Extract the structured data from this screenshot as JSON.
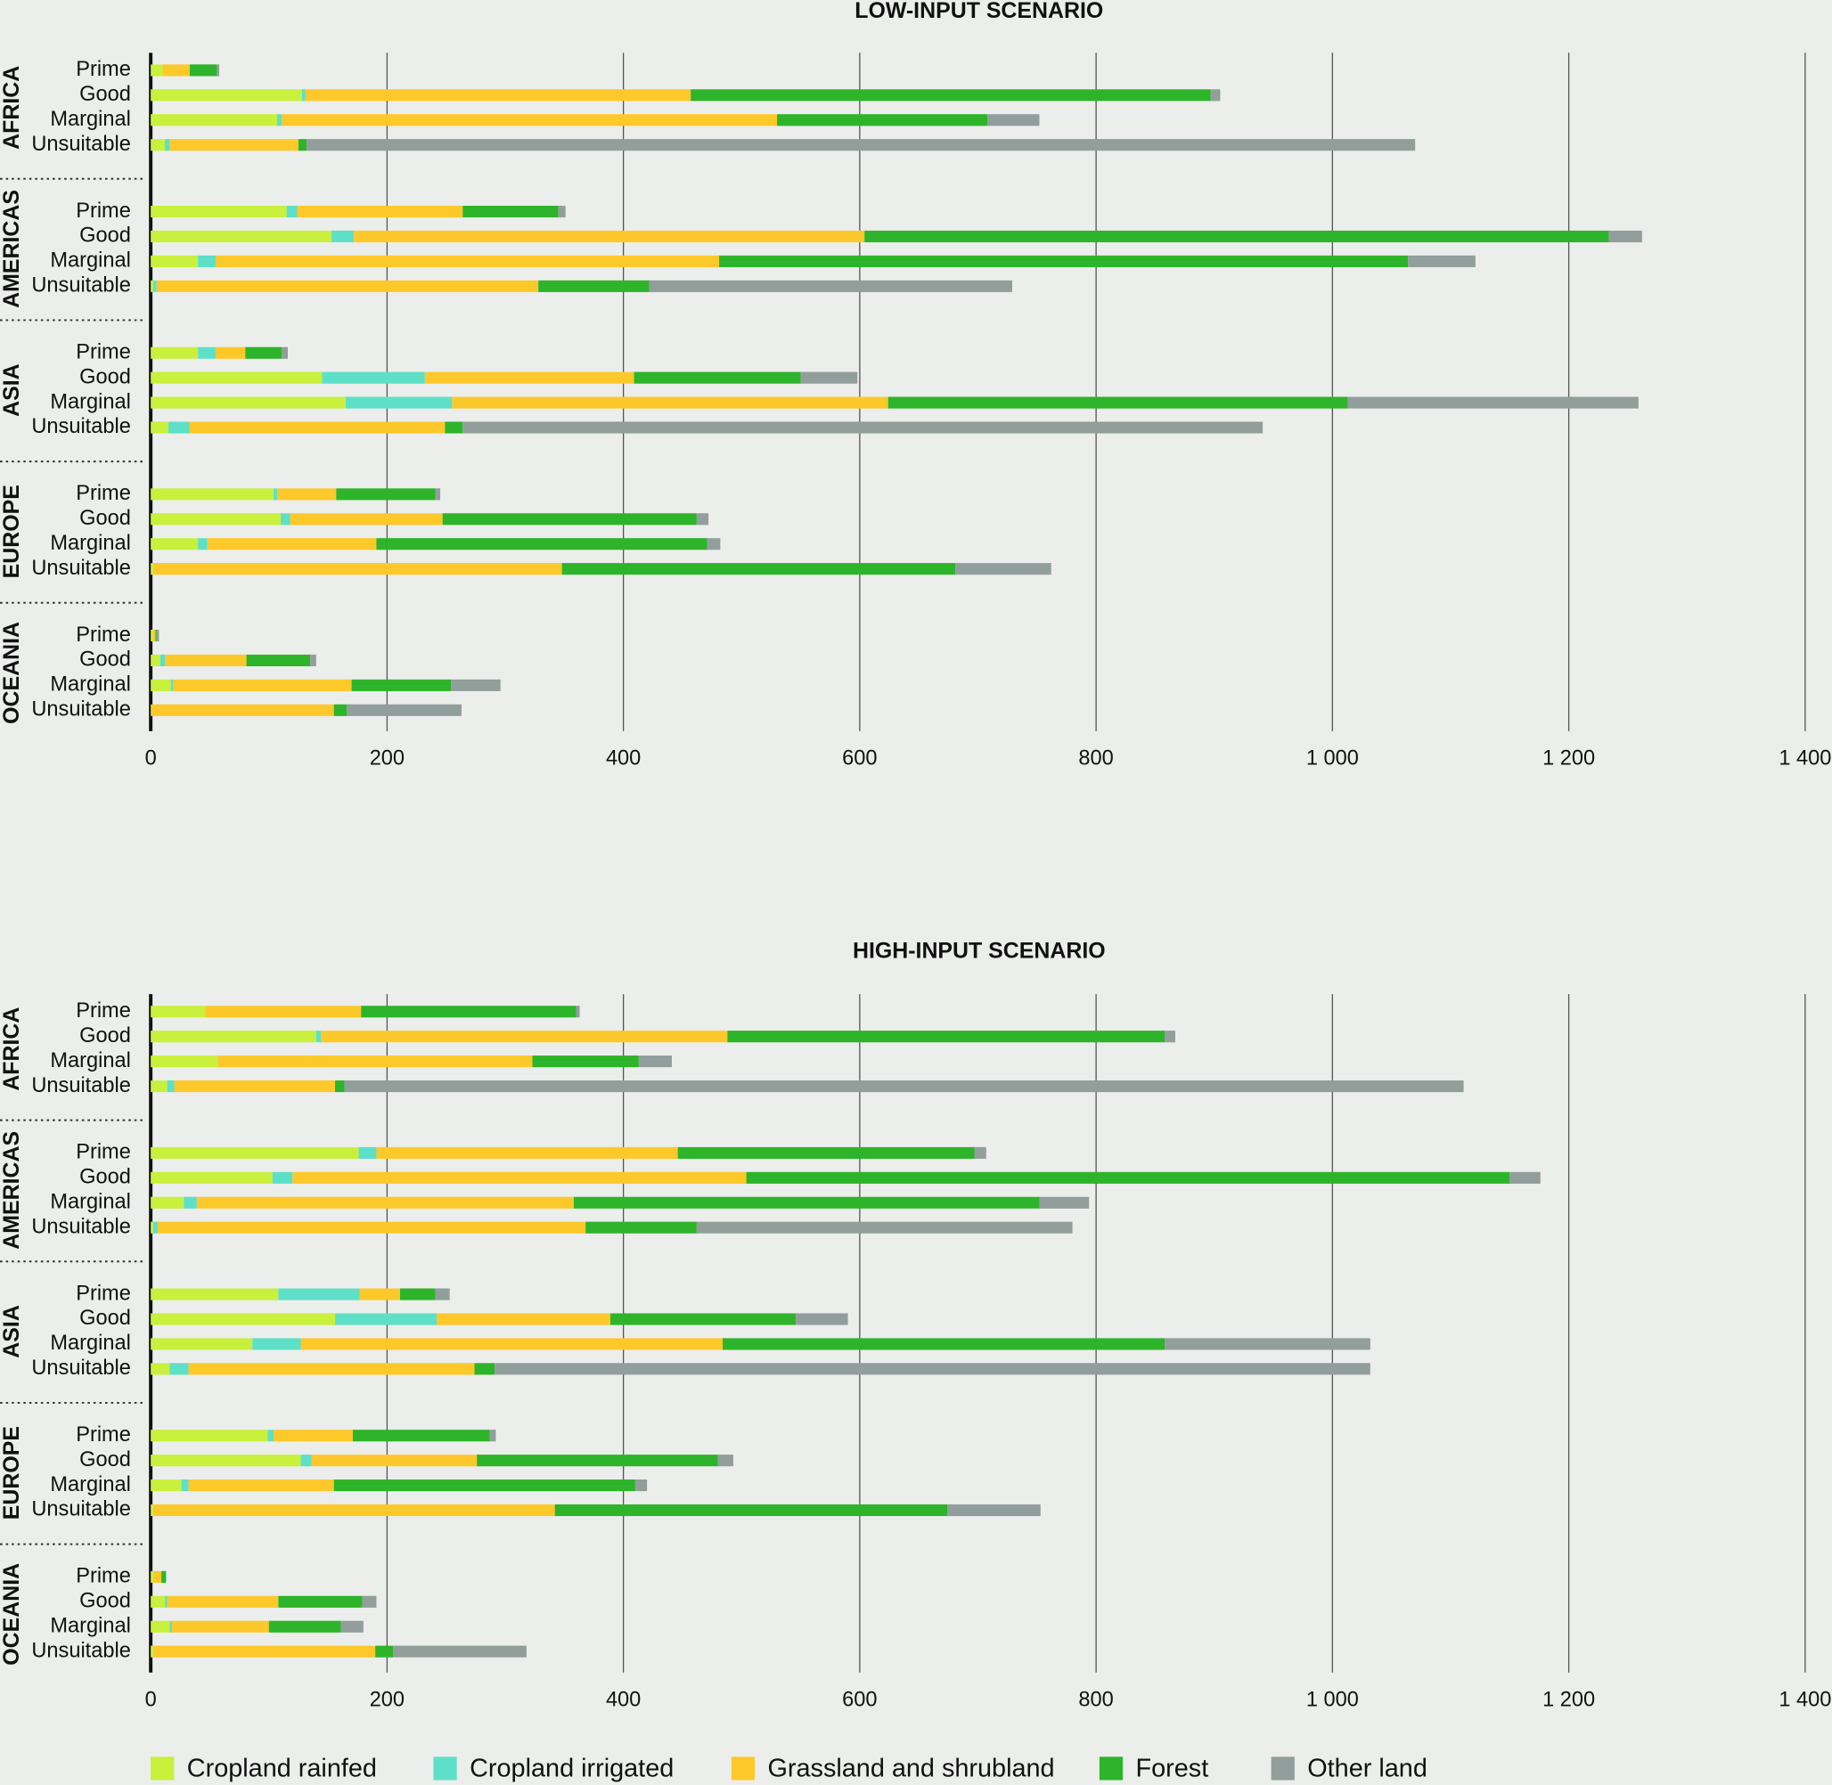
{
  "chart_data": [
    {
      "type": "bar",
      "orientation": "horizontal",
      "stacked": true,
      "title": "LOW-INPUT SCENARIO",
      "groups": [
        "AFRICA",
        "AMERICAS",
        "ASIA",
        "EUROPE",
        "OCEANIA"
      ],
      "categories": [
        "Prime",
        "Good",
        "Marginal",
        "Unsuitable",
        "Prime",
        "Good",
        "Marginal",
        "Unsuitable",
        "Prime",
        "Good",
        "Marginal",
        "Unsuitable",
        "Prime",
        "Good",
        "Marginal",
        "Unsuitable",
        "Prime",
        "Good",
        "Marginal",
        "Unsuitable"
      ],
      "xlim": [
        0,
        1400
      ],
      "xticks": [
        0,
        200,
        400,
        600,
        800,
        {
          "value": 1000,
          "label": "1 000"
        },
        {
          "value": 1200,
          "label": "1 200"
        },
        {
          "value": 1400,
          "label": "1 400"
        }
      ],
      "grid": true,
      "series": [
        {
          "name": "Cropland rainfed",
          "color": "#c8f03c",
          "values": [
            10,
            128,
            107,
            12,
            115,
            153,
            40,
            2,
            40,
            145,
            165,
            15,
            104,
            110,
            40,
            2,
            2,
            8,
            17,
            1
          ]
        },
        {
          "name": "Cropland irrigated",
          "color": "#5ee0c8",
          "values": [
            0,
            3,
            4,
            4,
            9,
            19,
            15,
            3,
            15,
            87,
            90,
            18,
            3,
            8,
            8,
            0,
            0,
            4,
            2,
            0
          ]
        },
        {
          "name": "Grassland and shrubland",
          "color": "#fdc82a",
          "values": [
            23,
            326,
            419,
            109,
            140,
            432,
            426,
            323,
            25,
            177,
            369,
            216,
            50,
            129,
            143,
            346,
            2,
            69,
            151,
            154
          ]
        },
        {
          "name": "Forest",
          "color": "#2db42a",
          "values": [
            23,
            440,
            178,
            7,
            81,
            630,
            583,
            94,
            31,
            141,
            389,
            15,
            84,
            215,
            280,
            333,
            1,
            54,
            84,
            11
          ]
        },
        {
          "name": "Other land",
          "color": "#929e9c",
          "values": [
            2,
            8,
            44,
            938,
            6,
            28,
            57,
            307,
            5,
            48,
            246,
            677,
            4,
            10,
            11,
            81,
            2,
            5,
            42,
            97
          ]
        }
      ]
    },
    {
      "type": "bar",
      "orientation": "horizontal",
      "stacked": true,
      "title": "HIGH-INPUT SCENARIO",
      "groups": [
        "AFRICA",
        "AMERICAS",
        "ASIA",
        "EUROPE",
        "OCEANIA"
      ],
      "categories": [
        "Prime",
        "Good",
        "Marginal",
        "Unsuitable",
        "Prime",
        "Good",
        "Marginal",
        "Unsuitable",
        "Prime",
        "Good",
        "Marginal",
        "Unsuitable",
        "Prime",
        "Good",
        "Marginal",
        "Unsuitable",
        "Prime",
        "Good",
        "Marginal",
        "Unsuitable"
      ],
      "xlim": [
        0,
        1400
      ],
      "xticks": [
        0,
        200,
        400,
        600,
        800,
        {
          "value": 1000,
          "label": "1 000"
        },
        {
          "value": 1200,
          "label": "1 200"
        },
        {
          "value": 1400,
          "label": "1 400"
        }
      ],
      "grid": true,
      "series": [
        {
          "color": "#c8f03c",
          "values": [
            46,
            140,
            57,
            14,
            176,
            103,
            28,
            2,
            108,
            156,
            86,
            16,
            99,
            127,
            26,
            2,
            2,
            12,
            16,
            2
          ]
        },
        {
          "color": "#5ee0c8",
          "values": [
            0,
            4,
            0,
            6,
            15,
            17,
            11,
            4,
            69,
            86,
            41,
            16,
            5,
            9,
            6,
            0,
            0,
            2,
            2,
            0
          ]
        },
        {
          "color": "#fdc82a",
          "values": [
            132,
            344,
            266,
            136,
            255,
            384,
            319,
            362,
            34,
            147,
            357,
            242,
            67,
            140,
            123,
            340,
            7,
            94,
            82,
            188
          ]
        },
        {
          "color": "#2db42a",
          "values": [
            182,
            370,
            90,
            8,
            251,
            646,
            394,
            94,
            30,
            157,
            374,
            17,
            116,
            204,
            255,
            332,
            4,
            71,
            61,
            15
          ]
        },
        {
          "color": "#929e9c",
          "values": [
            3,
            9,
            28,
            947,
            10,
            26,
            42,
            318,
            12,
            44,
            174,
            741,
            5,
            13,
            10,
            79,
            0,
            12,
            19,
            113
          ]
        }
      ]
    }
  ]
}
